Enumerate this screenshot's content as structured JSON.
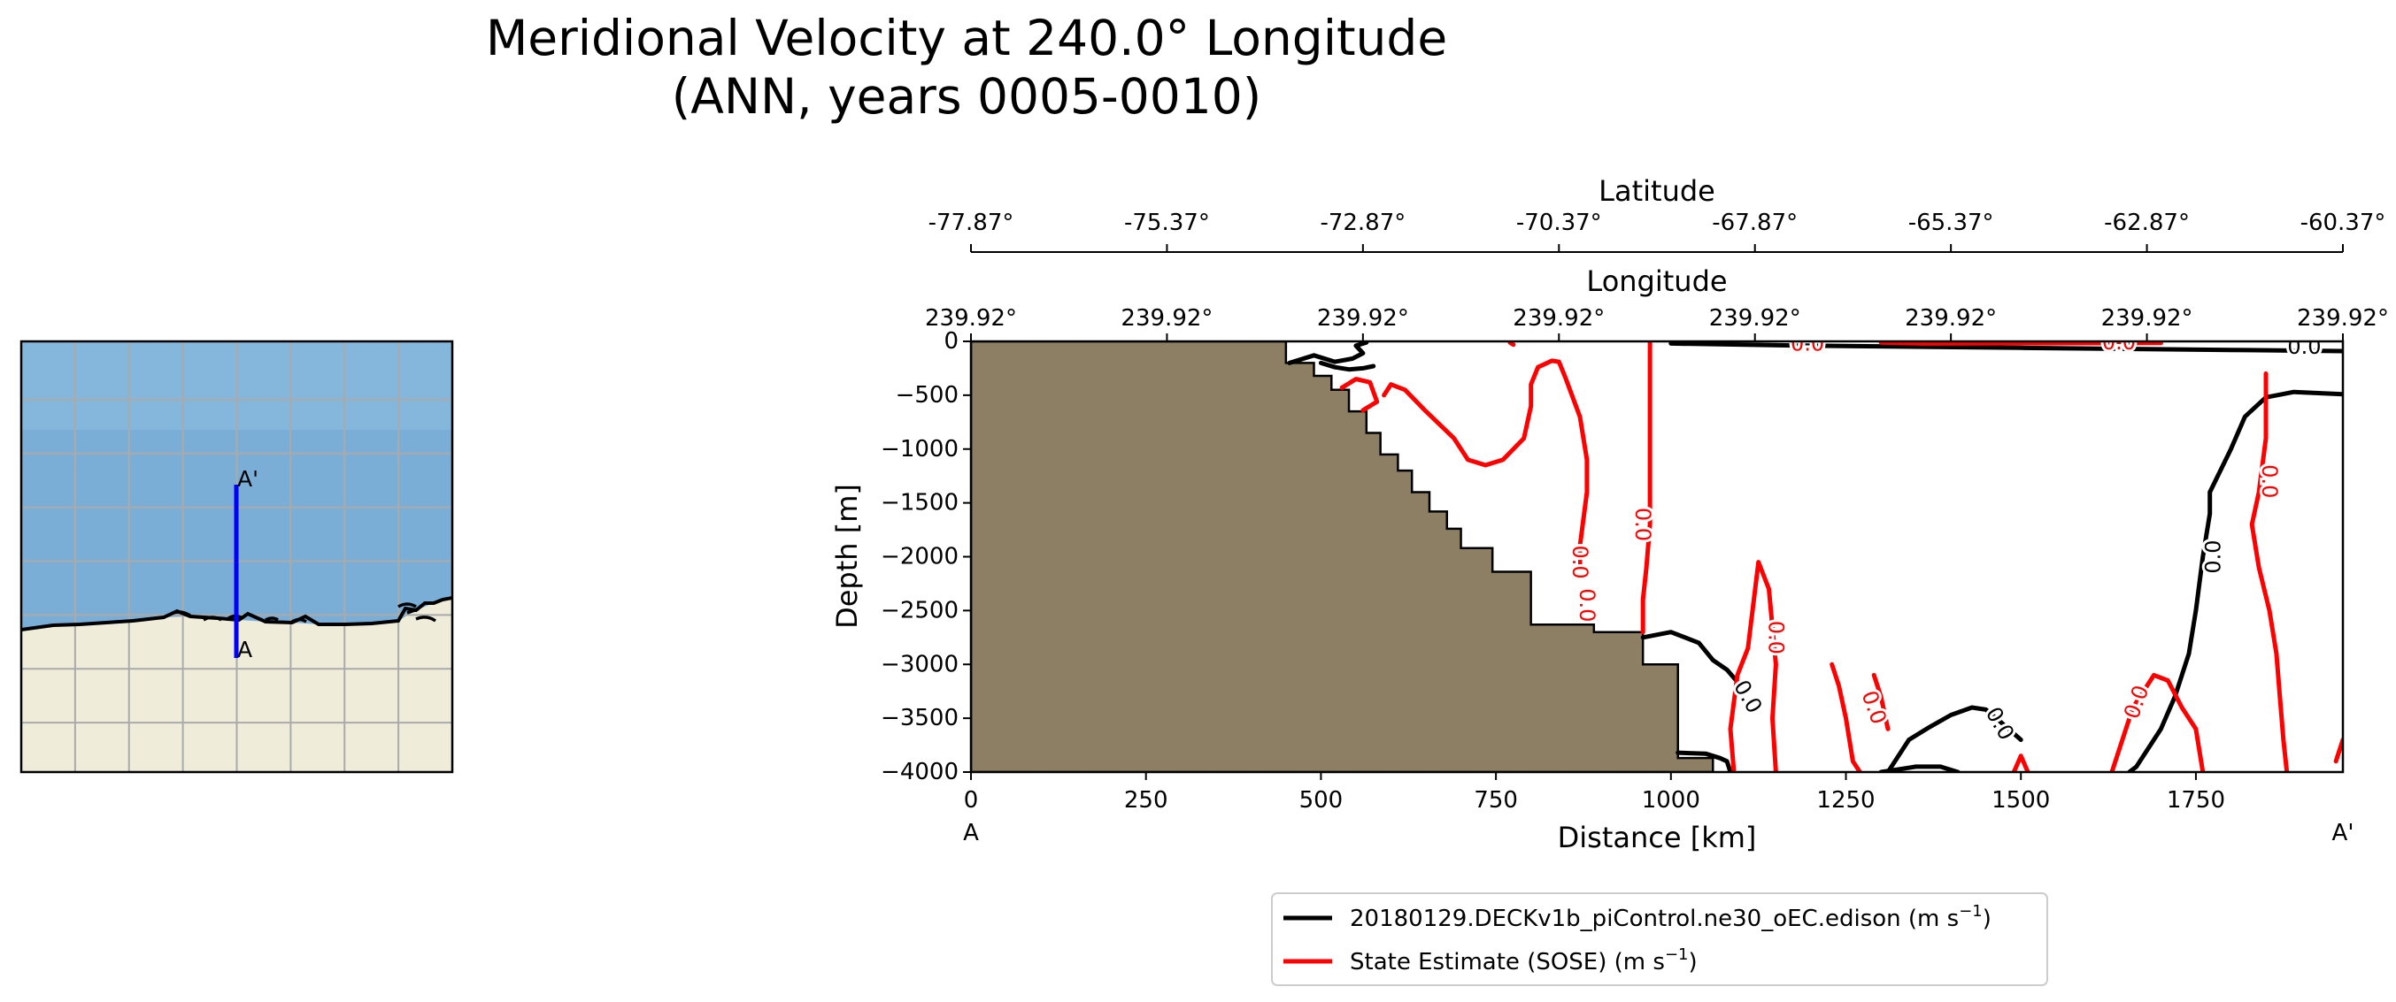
{
  "chart_data": {
    "type": "line",
    "title_line1": "Meridional Velocity at 240.0° Longitude",
    "title_line2": "(ANN, years 0005-0010)",
    "xlabel": "Distance [km]",
    "ylabel": "Depth [m]",
    "xlim": [
      0,
      1960
    ],
    "ylim": [
      -4000,
      0
    ],
    "x_ticks": [
      0,
      250,
      500,
      750,
      1000,
      1250,
      1500,
      1750
    ],
    "x_tick_labels": [
      "0",
      "250",
      "500",
      "750",
      "1000",
      "1250",
      "1500",
      "1750"
    ],
    "y_ticks": [
      0,
      -500,
      -1000,
      -1500,
      -2000,
      -2500,
      -3000,
      -3500,
      -4000
    ],
    "y_tick_labels": [
      "0",
      "−500",
      "−1000",
      "−1500",
      "−2000",
      "−2500",
      "−3000",
      "−3500",
      "−4000"
    ],
    "endpoint_left": "A",
    "endpoint_right": "A'",
    "latitude_axis": {
      "label": "Latitude",
      "ticks": [
        0,
        280,
        560,
        840,
        1120,
        1400,
        1680,
        1960
      ],
      "tick_labels": [
        "-77.87°",
        "-75.37°",
        "-72.87°",
        "-70.37°",
        "-67.87°",
        "-65.37°",
        "-62.87°",
        "-60.37°"
      ]
    },
    "longitude_axis": {
      "label": "Longitude",
      "ticks": [
        0,
        280,
        560,
        840,
        1120,
        1400,
        1680,
        1960
      ],
      "tick_labels": [
        "239.92°",
        "239.92°",
        "239.92°",
        "239.92°",
        "239.92°",
        "239.92°",
        "239.92°",
        "239.92°"
      ]
    },
    "bathymetry": [
      [
        450,
        0
      ],
      [
        450,
        -200
      ],
      [
        490,
        -200
      ],
      [
        490,
        -320
      ],
      [
        515,
        -320
      ],
      [
        515,
        -450
      ],
      [
        540,
        -450
      ],
      [
        540,
        -650
      ],
      [
        565,
        -650
      ],
      [
        565,
        -850
      ],
      [
        585,
        -850
      ],
      [
        585,
        -1050
      ],
      [
        610,
        -1050
      ],
      [
        610,
        -1200
      ],
      [
        630,
        -1200
      ],
      [
        630,
        -1400
      ],
      [
        655,
        -1400
      ],
      [
        655,
        -1580
      ],
      [
        680,
        -1580
      ],
      [
        680,
        -1740
      ],
      [
        700,
        -1740
      ],
      [
        700,
        -1920
      ],
      [
        745,
        -1920
      ],
      [
        745,
        -2140
      ],
      [
        800,
        -2140
      ],
      [
        800,
        -2630
      ],
      [
        890,
        -2630
      ],
      [
        890,
        -2700
      ],
      [
        960,
        -2700
      ],
      [
        960,
        -3000
      ],
      [
        1010,
        -3000
      ],
      [
        1010,
        -3870
      ],
      [
        1060,
        -3870
      ],
      [
        1060,
        -4000
      ]
    ],
    "series": [
      {
        "name": "20180129.DECKv1b_piControl.ne30_oEC.edison (m s",
        "unit_sup": "−1",
        "color": "#000000",
        "contour_level": 0.0,
        "label": "0.0",
        "segments": [
          [
            [
              455,
              -200
            ],
            [
              490,
              -130
            ],
            [
              520,
              -190
            ],
            [
              545,
              -160
            ],
            [
              560,
              -110
            ],
            [
              550,
              -40
            ],
            [
              565,
              -10
            ]
          ],
          [
            [
              500,
              -200
            ],
            [
              520,
              -240
            ],
            [
              540,
              -260
            ],
            [
              560,
              -250
            ],
            [
              575,
              -230
            ]
          ],
          [
            [
              1000,
              -20
            ],
            [
              1200,
              -40
            ],
            [
              1500,
              -60
            ],
            [
              1800,
              -80
            ],
            [
              1960,
              -90
            ]
          ],
          [
            [
              1960,
              -490
            ],
            [
              1890,
              -470
            ],
            [
              1850,
              -520
            ],
            [
              1820,
              -700
            ],
            [
              1800,
              -1000
            ],
            [
              1770,
              -1400
            ],
            [
              1770,
              -1600
            ],
            [
              1760,
              -2000
            ],
            [
              1750,
              -2500
            ],
            [
              1740,
              -2900
            ],
            [
              1720,
              -3300
            ],
            [
              1700,
              -3600
            ],
            [
              1665,
              -3950
            ],
            [
              1655,
              -4000
            ]
          ],
          [
            [
              960,
              -2750
            ],
            [
              1000,
              -2700
            ],
            [
              1040,
              -2800
            ],
            [
              1060,
              -2960
            ],
            [
              1080,
              -3050
            ],
            [
              1100,
              -3200
            ]
          ],
          [
            [
              1310,
              -4000
            ],
            [
              1340,
              -3700
            ],
            [
              1370,
              -3580
            ],
            [
              1400,
              -3470
            ],
            [
              1430,
              -3400
            ],
            [
              1450,
              -3420
            ],
            [
              1465,
              -3500
            ],
            [
              1500,
              -3700
            ]
          ],
          [
            [
              1300,
              -4000
            ],
            [
              1350,
              -3950
            ],
            [
              1385,
              -3950
            ],
            [
              1410,
              -4000
            ]
          ],
          [
            [
              1010,
              -3820
            ],
            [
              1050,
              -3830
            ],
            [
              1070,
              -3870
            ],
            [
              1080,
              -3900
            ],
            [
              1085,
              -4000
            ]
          ]
        ]
      },
      {
        "name": "State Estimate (SOSE) (m s",
        "unit_sup": "−1",
        "color": "#ff0000",
        "contour_level": 0.0,
        "label": "0.0",
        "segments": [
          [
            [
              530,
              -430
            ],
            [
              550,
              -350
            ],
            [
              570,
              -380
            ],
            [
              580,
              -560
            ],
            [
              560,
              -640
            ]
          ],
          [
            [
              590,
              -500
            ],
            [
              600,
              -400
            ],
            [
              620,
              -450
            ],
            [
              650,
              -650
            ],
            [
              690,
              -900
            ],
            [
              710,
              -1100
            ],
            [
              735,
              -1150
            ],
            [
              760,
              -1100
            ],
            [
              790,
              -900
            ],
            [
              800,
              -600
            ],
            [
              800,
              -400
            ],
            [
              810,
              -240
            ],
            [
              830,
              -180
            ],
            [
              840,
              -190
            ],
            [
              850,
              -350
            ],
            [
              870,
              -700
            ],
            [
              880,
              -1100
            ],
            [
              880,
              -1400
            ],
            [
              870,
              -1900
            ],
            [
              870,
              -2100
            ]
          ],
          [
            [
              770,
              -10
            ],
            [
              775,
              -30
            ]
          ],
          [
            [
              970,
              0
            ],
            [
              970,
              -200
            ],
            [
              970,
              -700
            ],
            [
              970,
              -1300
            ],
            [
              970,
              -1700
            ],
            [
              965,
              -2100
            ],
            [
              960,
              -2400
            ],
            [
              960,
              -2700
            ]
          ],
          [
            [
              1090,
              -4000
            ],
            [
              1085,
              -3600
            ],
            [
              1095,
              -3100
            ],
            [
              1110,
              -2850
            ],
            [
              1125,
              -2050
            ],
            [
              1140,
              -2300
            ],
            [
              1150,
              -3000
            ],
            [
              1145,
              -3500
            ],
            [
              1150,
              -4000
            ]
          ],
          [
            [
              1230,
              -3000
            ],
            [
              1240,
              -3200
            ],
            [
              1250,
              -3500
            ],
            [
              1260,
              -3900
            ],
            [
              1270,
              -4000
            ]
          ],
          [
            [
              1290,
              -3100
            ],
            [
              1300,
              -3300
            ],
            [
              1310,
              -3600
            ]
          ],
          [
            [
              1630,
              -4000
            ],
            [
              1640,
              -3800
            ],
            [
              1660,
              -3400
            ],
            [
              1690,
              -3100
            ],
            [
              1710,
              -3150
            ],
            [
              1730,
              -3400
            ],
            [
              1750,
              -3600
            ],
            [
              1760,
              -4000
            ]
          ],
          [
            [
              1850,
              -300
            ],
            [
              1850,
              -900
            ],
            [
              1840,
              -1400
            ],
            [
              1830,
              -1700
            ],
            [
              1840,
              -2100
            ],
            [
              1855,
              -2500
            ],
            [
              1865,
              -2900
            ],
            [
              1870,
              -3300
            ],
            [
              1875,
              -3700
            ],
            [
              1880,
              -4000
            ]
          ],
          [
            [
              1950,
              -3900
            ],
            [
              1960,
              -3700
            ]
          ],
          [
            [
              1300,
              -10
            ],
            [
              1360,
              -20
            ],
            [
              1700,
              -15
            ]
          ],
          [
            [
              1490,
              -4000
            ],
            [
              1500,
              -3850
            ],
            [
              1510,
              -4000
            ]
          ]
        ]
      }
    ],
    "contour_labels": [
      {
        "text": "0.0",
        "x": 1905,
        "y": -50,
        "rot": 0,
        "color": "#000000"
      },
      {
        "text": "0.0",
        "x": 1775,
        "y": -2000,
        "rot": -90,
        "color": "#000000"
      },
      {
        "text": "0.0",
        "x": 1110,
        "y": -3300,
        "rot": 60,
        "color": "#000000"
      },
      {
        "text": "0.0",
        "x": 1470,
        "y": -3550,
        "rot": 60,
        "color": "#000000"
      },
      {
        "text": "0.0",
        "x": 1195,
        "y": -20,
        "rot": 0,
        "color": "#ff0000"
      },
      {
        "text": "0.0",
        "x": 1640,
        "y": -10,
        "rot": 0,
        "color": "#ff0000"
      },
      {
        "text": "0.0",
        "x": 960,
        "y": -1700,
        "rot": 90,
        "color": "#ff0000"
      },
      {
        "text": "0.0",
        "x": 870,
        "y": -2050,
        "rot": 90,
        "color": "#ff0000"
      },
      {
        "text": "0.0",
        "x": 880,
        "y": -2450,
        "rot": 90,
        "color": "#ff0000"
      },
      {
        "text": "0.0",
        "x": 1150,
        "y": -2750,
        "rot": 90,
        "color": "#ff0000"
      },
      {
        "text": "0.0",
        "x": 1290,
        "y": -3400,
        "rot": 70,
        "color": "#ff0000"
      },
      {
        "text": "0.0",
        "x": 1665,
        "y": -3350,
        "rot": -70,
        "color": "#ff0000"
      },
      {
        "text": "0.0",
        "x": 1855,
        "y": -1300,
        "rot": 90,
        "color": "#ff0000"
      }
    ],
    "inset_map": {
      "label_start": "A",
      "label_end": "A'",
      "transect_color": "#0000ff",
      "ocean_color": "#7aaed6",
      "land_color": "#efecda",
      "grid_color": "#aaaaaa"
    },
    "legend_placement": "bottom-center"
  },
  "colors": {
    "land_fill": "#8c7f64",
    "axis": "#000000"
  }
}
